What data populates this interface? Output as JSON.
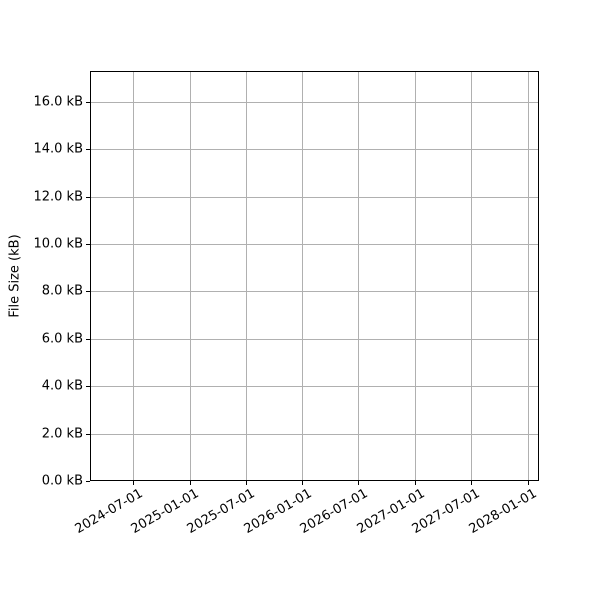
{
  "chart_data": {
    "type": "line",
    "title": "",
    "xlabel": "",
    "ylabel": "File Size (kB)",
    "grid": true,
    "legend": "none",
    "series": [],
    "x_axis": {
      "tick_labels": [
        "2024-07-01",
        "2025-01-01",
        "2025-07-01",
        "2026-01-01",
        "2026-07-01",
        "2027-01-01",
        "2027-07-01",
        "2028-01-01"
      ],
      "range": [
        "2024-02-14",
        "2028-02-05"
      ],
      "tick_rotation_deg": 30
    },
    "y_axis": {
      "ticks": [
        {
          "value": 0,
          "label": "0.0 kB"
        },
        {
          "value": 2,
          "label": "2.0 kB"
        },
        {
          "value": 4,
          "label": "4.0 kB"
        },
        {
          "value": 6,
          "label": "6.0 kB"
        },
        {
          "value": 8,
          "label": "8.0 kB"
        },
        {
          "value": 10,
          "label": "10.0 kB"
        },
        {
          "value": 12,
          "label": "12.0 kB"
        },
        {
          "value": 14,
          "label": "14.0 kB"
        },
        {
          "value": 16,
          "label": "16.0 kB"
        }
      ],
      "range": [
        0,
        17.3
      ]
    },
    "colors": {
      "background": "#ffffff",
      "frame": "#000000",
      "grid": "#b0b0b0",
      "tick": "#000000",
      "text": "#000000"
    }
  }
}
